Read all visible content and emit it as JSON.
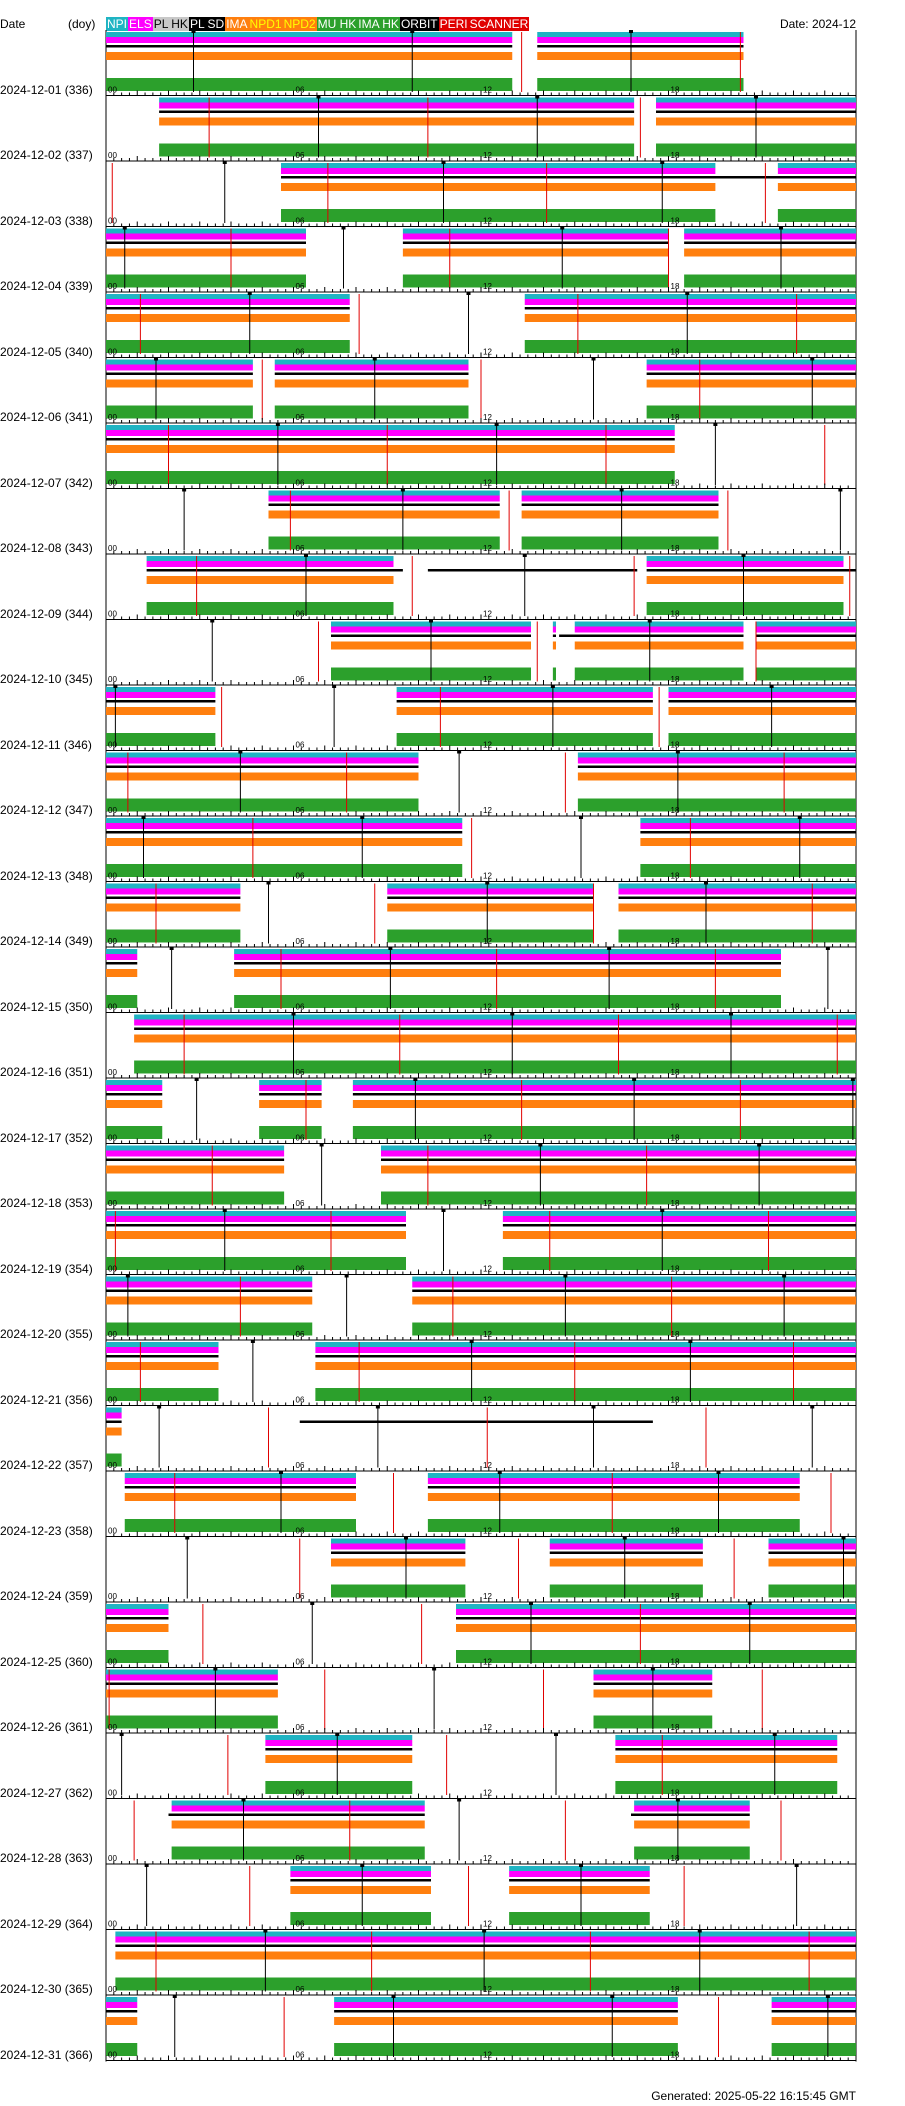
{
  "header": {
    "date_label": "Date",
    "doy_label": "(doy)",
    "title": "Date: 2024-12"
  },
  "legend": [
    {
      "label": "NPI",
      "bg": "#1fb4c3",
      "fg": "#ffffff"
    },
    {
      "label": "ELS",
      "bg": "#ff00ff",
      "fg": "#ffffff"
    },
    {
      "label": "PL HK",
      "bg": "#c8c8c8",
      "fg": "#000000"
    },
    {
      "label": "PL SD",
      "bg": "#000000",
      "fg": "#ffffff"
    },
    {
      "label": "IMA",
      "bg": "#ff7f0e",
      "fg": "#ffffff"
    },
    {
      "label": "NPD1",
      "bg": "#ff7f0e",
      "fg": "#ffff00"
    },
    {
      "label": "NPD2",
      "bg": "#ff7f0e",
      "fg": "#ffff00"
    },
    {
      "label": "MU HK",
      "bg": "#2ca02c",
      "fg": "#ffffff"
    },
    {
      "label": "IMA HK",
      "bg": "#2ca02c",
      "fg": "#ffffff"
    },
    {
      "label": "ORBIT",
      "bg": "#000000",
      "fg": "#ffffff"
    },
    {
      "label": "PERI",
      "bg": "#e00000",
      "fg": "#ffffff"
    },
    {
      "label": "SCANNER",
      "bg": "#e00000",
      "fg": "#ffffff"
    }
  ],
  "footer": "Generated: 2025-05-22 16:15:45 GMT",
  "colors": {
    "npi": "#1fb4c3",
    "els": "#ff00ff",
    "ima": "#ff7f0e",
    "hk": "#2ca02c",
    "orbit": "#000000",
    "peri": "#e00000"
  },
  "chart_data": {
    "type": "timeline",
    "x_unit": "hour of day",
    "xlim": [
      0,
      24
    ],
    "hour_ticks": [
      "00",
      "06",
      "12",
      "18"
    ],
    "days": [
      {
        "label": "2024-12-01 (336)",
        "segs": [
          [
            0,
            13
          ],
          [
            13.8,
            20.4
          ]
        ],
        "sd": [
          [
            0,
            13
          ],
          [
            13.8,
            20.4
          ]
        ],
        "peri": [
          13.3,
          20.3
        ],
        "apo": [
          2.8,
          9.8,
          16.8
        ]
      },
      {
        "label": "2024-12-02 (337)",
        "segs": [
          [
            1.7,
            16.9
          ],
          [
            17.6,
            24
          ]
        ],
        "sd": [
          [
            1.7,
            16.9
          ],
          [
            17.6,
            24
          ]
        ],
        "peri": [
          3.3,
          10.3,
          17.1
        ],
        "apo": [
          6.8,
          13.8,
          20.8
        ]
      },
      {
        "label": "2024-12-03 (338)",
        "segs": [
          [
            5.6,
            19.5
          ],
          [
            21.5,
            24
          ]
        ],
        "sd": [
          [
            5.6,
            24
          ]
        ],
        "peri": [
          0.2,
          7.1,
          14.1,
          21.1
        ],
        "apo": [
          3.8,
          10.8,
          17.8
        ]
      },
      {
        "label": "2024-12-04 (339)",
        "segs": [
          [
            0,
            6.4
          ],
          [
            9.5,
            18
          ],
          [
            18.5,
            24
          ]
        ],
        "sd": [
          [
            0,
            6.4
          ],
          [
            9.5,
            18
          ],
          [
            18.5,
            24
          ]
        ],
        "peri": [
          4,
          11,
          18
        ],
        "apo": [
          0.6,
          7.6,
          14.6,
          21.6
        ]
      },
      {
        "label": "2024-12-05 (340)",
        "segs": [
          [
            0,
            7.8
          ],
          [
            13.4,
            24
          ]
        ],
        "sd": [
          [
            0,
            7.8
          ],
          [
            13.4,
            24
          ]
        ],
        "peri": [
          1.1,
          8.1,
          15.1,
          22.1
        ],
        "apo": [
          4.6,
          11.6,
          18.6
        ]
      },
      {
        "label": "2024-12-06 (341)",
        "segs": [
          [
            0,
            4.7
          ],
          [
            5.4,
            11.6
          ],
          [
            17.3,
            24
          ]
        ],
        "sd": [
          [
            0,
            4.7
          ],
          [
            5.4,
            11.6
          ],
          [
            17.3,
            24
          ]
        ],
        "peri": [
          5,
          12,
          19
        ],
        "apo": [
          1.6,
          8.6,
          15.6,
          22.6
        ]
      },
      {
        "label": "2024-12-07 (342)",
        "segs": [
          [
            0,
            18.2
          ]
        ],
        "sd": [
          [
            0,
            18.2
          ]
        ],
        "peri": [
          2,
          9,
          16,
          23
        ],
        "apo": [
          5.5,
          12.5,
          19.5
        ]
      },
      {
        "label": "2024-12-08 (343)",
        "segs": [
          [
            5.2,
            12.6
          ],
          [
            13.3,
            19.6
          ]
        ],
        "sd": [
          [
            5.2,
            12.6
          ],
          [
            13.3,
            19.6
          ]
        ],
        "peri": [
          5.9,
          12.9,
          19.9
        ],
        "apo": [
          2.5,
          9.5,
          16.5,
          23.5
        ]
      },
      {
        "label": "2024-12-09 (344)",
        "segs": [
          [
            1.3,
            9.2
          ],
          [
            17.3,
            23.6
          ]
        ],
        "sd": [
          [
            1.3,
            9.5
          ],
          [
            10.3,
            17
          ],
          [
            17.3,
            24
          ]
        ],
        "peri": [
          2.9,
          9.8,
          16.9,
          23.8
        ],
        "apo": [
          6.4,
          13.4,
          20.4
        ]
      },
      {
        "label": "2024-12-10 (345)",
        "segs": [
          [
            7.2,
            13.6
          ],
          [
            14.3,
            14.4
          ],
          [
            15,
            20.4
          ],
          [
            20.8,
            24
          ]
        ],
        "sd": [
          [
            7.2,
            13.6
          ],
          [
            14.3,
            14.4
          ],
          [
            14.5,
            15.9
          ],
          [
            15,
            20.4
          ],
          [
            20.8,
            24
          ]
        ],
        "peri": [
          6.8,
          13.8,
          20.8
        ],
        "apo": [
          3.4,
          10.4,
          17.4
        ]
      },
      {
        "label": "2024-12-11 (346)",
        "segs": [
          [
            0,
            3.5
          ],
          [
            9.3,
            17.5
          ],
          [
            18,
            24
          ]
        ],
        "sd": [
          [
            0,
            3.5
          ],
          [
            9.3,
            17.5
          ],
          [
            18,
            24
          ]
        ],
        "peri": [
          3.7,
          10.7,
          17.7
        ],
        "apo": [
          0.3,
          7.3,
          14.3,
          21.3
        ]
      },
      {
        "label": "2024-12-12 (347)",
        "segs": [
          [
            0,
            10
          ],
          [
            15.1,
            24
          ]
        ],
        "sd": [
          [
            0,
            10
          ],
          [
            15.1,
            24
          ]
        ],
        "peri": [
          0.7,
          7.7,
          14.7,
          21.7
        ],
        "apo": [
          4.3,
          11.3,
          18.3
        ]
      },
      {
        "label": "2024-12-13 (348)",
        "segs": [
          [
            0,
            11.4
          ],
          [
            17.1,
            24
          ]
        ],
        "sd": [
          [
            0,
            11.4
          ],
          [
            17.1,
            24
          ]
        ],
        "peri": [
          4.7,
          11.7,
          18.7
        ],
        "apo": [
          1.2,
          8.2,
          15.2,
          22.2
        ]
      },
      {
        "label": "2024-12-14 (349)",
        "segs": [
          [
            0,
            4.3
          ],
          [
            9,
            15.6
          ],
          [
            16.4,
            24
          ]
        ],
        "sd": [
          [
            0,
            4.3
          ],
          [
            9,
            15.6
          ],
          [
            16.4,
            24
          ]
        ],
        "peri": [
          1.6,
          8.6,
          15.6,
          22.6
        ],
        "apo": [
          5.2,
          12.2,
          19.2
        ]
      },
      {
        "label": "2024-12-15 (350)",
        "segs": [
          [
            0,
            1
          ],
          [
            4.1,
            21.6
          ]
        ],
        "sd": [
          [
            0,
            1
          ],
          [
            4.1,
            21.6
          ]
        ],
        "peri": [
          5.6,
          12.5,
          19.5
        ],
        "apo": [
          2.1,
          9.1,
          16.1,
          23.1
        ]
      },
      {
        "label": "2024-12-16 (351)",
        "segs": [
          [
            0.9,
            24
          ]
        ],
        "sd": [
          [
            0.9,
            24
          ]
        ],
        "peri": [
          2.5,
          9.4,
          16.4,
          23.4
        ],
        "apo": [
          6,
          13,
          20
        ]
      },
      {
        "label": "2024-12-17 (352)",
        "segs": [
          [
            0,
            1.8
          ],
          [
            4.9,
            6.9
          ],
          [
            7.9,
            24
          ]
        ],
        "sd": [
          [
            0,
            1.8
          ],
          [
            4.9,
            6.9
          ],
          [
            7.9,
            24
          ]
        ],
        "peri": [
          6.4,
          13.3,
          20.3
        ],
        "apo": [
          2.9,
          9.9,
          16.9,
          23.9
        ]
      },
      {
        "label": "2024-12-18 (353)",
        "segs": [
          [
            0,
            5.7
          ],
          [
            8.8,
            24
          ]
        ],
        "sd": [
          [
            0,
            5.7
          ],
          [
            8.8,
            24
          ]
        ],
        "peri": [
          3.4,
          10.3,
          17.3
        ],
        "apo": [
          6.9,
          13.9,
          20.9
        ]
      },
      {
        "label": "2024-12-19 (354)",
        "segs": [
          [
            0,
            9.6
          ],
          [
            12.7,
            24
          ]
        ],
        "sd": [
          [
            0,
            9.6
          ],
          [
            12.7,
            24
          ]
        ],
        "peri": [
          0.3,
          7.2,
          14.2,
          21.2
        ],
        "apo": [
          3.8,
          10.8,
          17.8
        ]
      },
      {
        "label": "2024-12-20 (355)",
        "segs": [
          [
            0,
            6.6
          ],
          [
            9.8,
            24
          ]
        ],
        "sd": [
          [
            0,
            6.6
          ],
          [
            9.8,
            24
          ]
        ],
        "peri": [
          4.3,
          11.1,
          18.1
        ],
        "apo": [
          0.7,
          7.7,
          14.7,
          21.7
        ]
      },
      {
        "label": "2024-12-21 (356)",
        "segs": [
          [
            0,
            3.6
          ],
          [
            6.7,
            24
          ]
        ],
        "sd": [
          [
            0,
            3.6
          ],
          [
            6.7,
            24
          ]
        ],
        "peri": [
          1.1,
          8.1,
          15,
          22
        ],
        "apo": [
          4.7,
          11.7,
          18.7
        ]
      },
      {
        "label": "2024-12-22 (357)",
        "segs": [
          [
            0,
            0.5
          ]
        ],
        "sd": [
          [
            0,
            0.5
          ],
          [
            6.2,
            17.5
          ]
        ],
        "peri": [
          5.2,
          12.2,
          19.2
        ],
        "apo": [
          1.7,
          8.7,
          15.6,
          22.6
        ]
      },
      {
        "label": "2024-12-23 (358)",
        "segs": [
          [
            0.6,
            8
          ],
          [
            10.3,
            22.2
          ]
        ],
        "sd": [
          [
            0.6,
            8
          ],
          [
            10.3,
            22.2
          ]
        ],
        "peri": [
          2.2,
          9.2,
          16.2,
          23.2
        ],
        "apo": [
          5.6,
          12.6,
          19.6
        ]
      },
      {
        "label": "2024-12-24 (359)",
        "segs": [
          [
            7.2,
            11.5
          ],
          [
            14.2,
            19.1
          ],
          [
            21.2,
            24
          ]
        ],
        "sd": [
          [
            7.2,
            11.5
          ],
          [
            14.2,
            19.1
          ],
          [
            21.2,
            24
          ]
        ],
        "peri": [
          6.2,
          13.2,
          20.1
        ],
        "apo": [
          2.6,
          9.6,
          16.6,
          23.6
        ]
      },
      {
        "label": "2024-12-25 (360)",
        "segs": [
          [
            0,
            2
          ],
          [
            11.2,
            24
          ]
        ],
        "sd": [
          [
            0,
            2
          ],
          [
            11.2,
            24
          ]
        ],
        "peri": [
          3.1,
          10.1,
          17.1
        ],
        "apo": [
          6.6,
          13.6,
          20.6
        ]
      },
      {
        "label": "2024-12-26 (361)",
        "segs": [
          [
            0,
            5.5
          ],
          [
            15.6,
            19.4
          ]
        ],
        "sd": [
          [
            0,
            5.5
          ],
          [
            15.6,
            19.4
          ]
        ],
        "peri": [
          0.1,
          7,
          14,
          21
        ],
        "apo": [
          3.5,
          10.5,
          17.5
        ]
      },
      {
        "label": "2024-12-27 (362)",
        "segs": [
          [
            5.1,
            9.8
          ],
          [
            16.3,
            23.4
          ]
        ],
        "sd": [
          [
            5.1,
            9.8
          ],
          [
            16.3,
            23.4
          ]
        ],
        "peri": [
          3.9,
          10.9,
          17.8
        ],
        "apo": [
          0.5,
          7.4,
          14.4,
          21.4
        ]
      },
      {
        "label": "2024-12-28 (363)",
        "segs": [
          [
            2.1,
            10.2
          ],
          [
            16.9,
            20.6
          ]
        ],
        "sd": [
          [
            2,
            10.2
          ],
          [
            16.8,
            20.6
          ]
        ],
        "peri": [
          0.9,
          7.8,
          14.7,
          21.6
        ],
        "apo": [
          4.4,
          11.3,
          18.3
        ]
      },
      {
        "label": "2024-12-29 (364)",
        "segs": [
          [
            5.9,
            10.4
          ],
          [
            12.9,
            17.4
          ]
        ],
        "sd": [
          [
            5.9,
            10.4
          ],
          [
            12.9,
            17.4
          ]
        ],
        "peri": [
          4.6,
          11.6,
          18.5
        ],
        "apo": [
          1.3,
          8.2,
          15.2,
          22.1
        ]
      },
      {
        "label": "2024-12-30 (365)",
        "segs": [
          [
            0.3,
            24
          ]
        ],
        "sd": [
          [
            0.3,
            24
          ]
        ],
        "peri": [
          1.6,
          8.5,
          15.5,
          22.5
        ],
        "apo": [
          5.1,
          12.1,
          19
        ]
      },
      {
        "label": "2024-12-31 (366)",
        "segs": [
          [
            0,
            1
          ],
          [
            7.3,
            18.3
          ],
          [
            21.3,
            24
          ]
        ],
        "sd": [
          [
            0,
            1
          ],
          [
            7.3,
            18.3
          ],
          [
            21.3,
            24
          ]
        ],
        "peri": [
          5.7,
          19.6
        ],
        "apo": [
          2.2,
          9.2,
          16.2,
          23.1
        ]
      }
    ]
  }
}
